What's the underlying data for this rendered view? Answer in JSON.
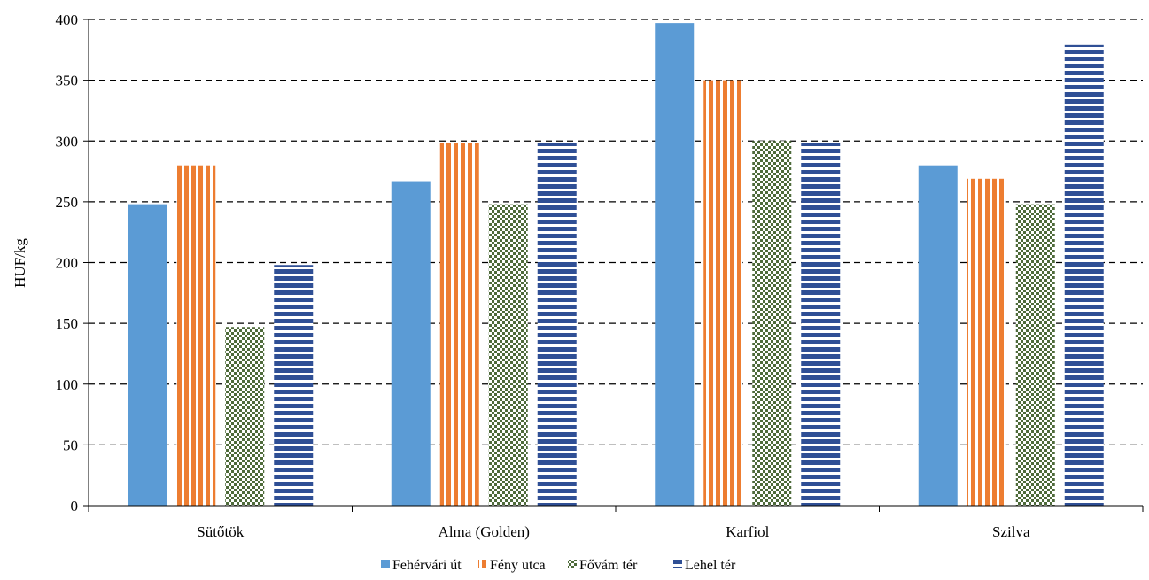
{
  "chart_data": {
    "type": "bar",
    "title": "",
    "xlabel": "",
    "ylabel": "HUF/kg",
    "ylim": [
      0,
      400
    ],
    "yticks": [
      0,
      50,
      100,
      150,
      200,
      250,
      300,
      350,
      400
    ],
    "grid": "horizontal dashed",
    "legend_position": "bottom",
    "categories": [
      "Sütőtök",
      "Alma (Golden)",
      "Karfiol",
      "Szilva"
    ],
    "series": [
      {
        "name": "Fehérvári út",
        "color": "#5b9bd5",
        "pattern": "solid",
        "values": [
          248,
          267,
          397,
          280
        ]
      },
      {
        "name": "Fény utca",
        "color": "#ed7d31",
        "pattern": "vertical-stripes",
        "values": [
          280,
          298,
          350,
          269
        ]
      },
      {
        "name": "Fővám tér",
        "color": "#4e6b3a",
        "pattern": "checkerboard",
        "values": [
          147,
          248,
          300,
          248
        ]
      },
      {
        "name": "Lehel tér",
        "color": "#2f4f95",
        "pattern": "horizontal-stripes",
        "values": [
          198,
          298,
          298,
          379
        ]
      }
    ]
  }
}
